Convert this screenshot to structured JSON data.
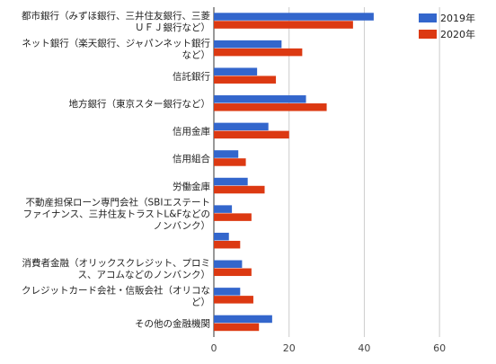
{
  "chart_data": {
    "type": "bar",
    "orientation": "horizontal",
    "title": "",
    "xlabel": "",
    "ylabel": "",
    "xlim": [
      0,
      70
    ],
    "xticks": [
      "0",
      "20",
      "40",
      "60"
    ],
    "grid": true,
    "legend_position": "top-right",
    "categories": [
      "都市銀行（みずほ銀行、三井住友銀行、三菱ＵＦＪ銀行など）",
      "ネット銀行（楽天銀行、ジャパンネット銀行など）",
      "信託銀行",
      "地方銀行（東京スター銀行など）",
      "信用金庫",
      "信用組合",
      "労働金庫",
      "不動産担保ローン専門会社（SBIエステートファイナンス、三井住友トラストL&Fなどのノンバンク）",
      "",
      "消費者金融（オリックスクレジット、プロミス、アコムなどのノンバンク）",
      "クレジットカード会社・信販会社（オリコなど）",
      "その他の金融機関"
    ],
    "category_lines": [
      [
        "都市銀行（みずほ銀行、三井住友銀行、三菱",
        "ＵＦＪ銀行など）"
      ],
      [
        "ネット銀行（楽天銀行、ジャパンネット銀行",
        "など）"
      ],
      [
        "信託銀行"
      ],
      [
        "地方銀行（東京スター銀行など）"
      ],
      [
        "信用金庫"
      ],
      [
        "信用組合"
      ],
      [
        "労働金庫"
      ],
      [
        "不動産担保ローン専門会社（SBIエステート",
        "ファイナンス、三井住友トラストL&Fなどの",
        "ノンバンク）"
      ],
      [],
      [
        "消費者金融（オリックスクレジット、プロミ",
        "ス、アコムなどのノンバンク）"
      ],
      [
        "クレジットカード会社・信販会社（オリコな",
        "ど）"
      ],
      [
        "その他の金融機関"
      ]
    ],
    "series": [
      {
        "name": "2019年",
        "color": "#3366cc",
        "values": [
          42.5,
          18.0,
          11.5,
          24.5,
          14.5,
          6.5,
          9.0,
          4.8,
          4.0,
          7.5,
          7.0,
          15.5
        ]
      },
      {
        "name": "2020年",
        "color": "#dc3912",
        "values": [
          37.0,
          23.5,
          16.5,
          30.0,
          20.0,
          8.5,
          13.5,
          10.0,
          7.0,
          10.0,
          10.5,
          12.0
        ]
      }
    ]
  }
}
